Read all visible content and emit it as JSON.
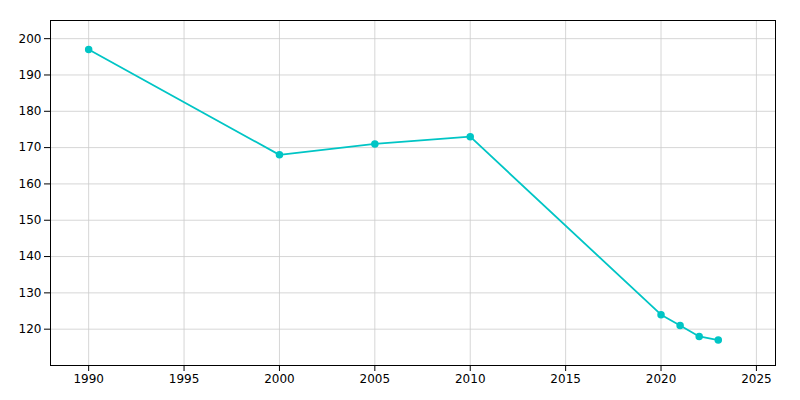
{
  "chart_data": {
    "type": "line",
    "x": [
      1990,
      2000,
      2005,
      2010,
      2020,
      2021,
      2022,
      2023
    ],
    "values": [
      197,
      168,
      171,
      173,
      124,
      121,
      118,
      117
    ],
    "color": "#00C5C5",
    "marker": "circle",
    "xlim": [
      1988,
      2026
    ],
    "ylim": [
      110,
      205
    ],
    "xticks": [
      1990,
      1995,
      2000,
      2005,
      2010,
      2015,
      2020,
      2025
    ],
    "yticks": [
      120,
      130,
      140,
      150,
      160,
      170,
      180,
      190,
      200
    ],
    "grid": true
  }
}
